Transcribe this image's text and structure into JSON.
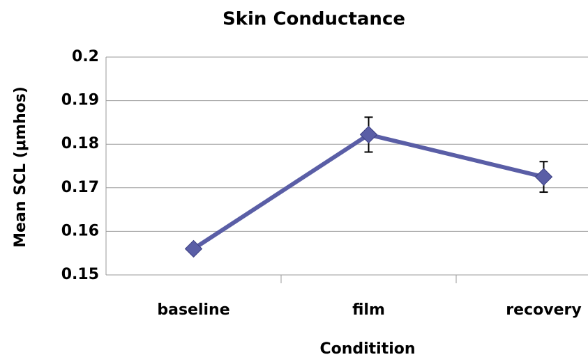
{
  "chart_data": {
    "type": "line",
    "title": "Skin Conductance",
    "x_label": "Conditition",
    "y_label": "Mean SCL (μmhos)",
    "categories": [
      "baseline",
      "film",
      "recovery"
    ],
    "series": [
      {
        "name": "Mean SCL",
        "color": "#5a5ea6",
        "values": [
          0.156,
          0.1822,
          0.1725
        ],
        "errors": [
          null,
          0.004,
          0.0035
        ]
      }
    ],
    "ylim": [
      0.15,
      0.2
    ],
    "yticks": [
      0.15,
      0.16,
      0.17,
      0.18,
      0.19,
      0.2
    ],
    "grid": true
  }
}
